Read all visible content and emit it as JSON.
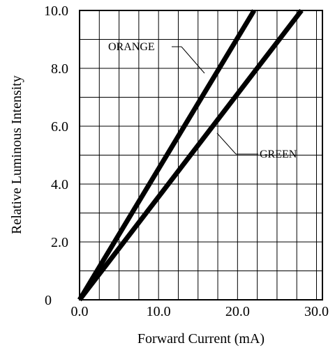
{
  "chart_data": {
    "type": "line",
    "xlabel": "Forward Current (mA)",
    "ylabel": "Relative Luminous Intensity",
    "xlim": [
      0,
      30.75
    ],
    "ylim": [
      0,
      10
    ],
    "x_ticks": [
      "0.0",
      "10.0",
      "20.0",
      "30.0"
    ],
    "y_ticks": [
      "0",
      "2.0",
      "4.0",
      "6.0",
      "8.0",
      "10.0"
    ],
    "grid": true,
    "series": [
      {
        "name": "ORANGE",
        "color": "#000000",
        "x": [
          0,
          22.1
        ],
        "y": [
          0,
          10.0
        ]
      },
      {
        "name": "GREEN",
        "color": "#000000",
        "x": [
          0,
          28.1
        ],
        "y": [
          0,
          10.0
        ]
      }
    ]
  }
}
